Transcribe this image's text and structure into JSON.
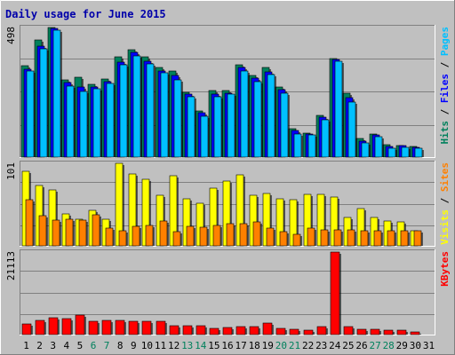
{
  "chart_data": {
    "type": "bar",
    "title": "Daily usage for June 2015",
    "days": [
      "1",
      "2",
      "3",
      "4",
      "5",
      "6",
      "7",
      "8",
      "9",
      "10",
      "11",
      "12",
      "13",
      "14",
      "15",
      "16",
      "17",
      "18",
      "19",
      "20",
      "21",
      "22",
      "23",
      "24",
      "25",
      "26",
      "27",
      "28",
      "29",
      "30",
      "31"
    ],
    "weekend_days": [
      "6",
      "7",
      "13",
      "14",
      "20",
      "21",
      "27",
      "28"
    ],
    "colors": {
      "hits": "#00805c",
      "files": "#0000ff",
      "pages": "#00c0ff",
      "visits": "#ffff00",
      "sites": "#ff8000",
      "kbytes": "#ff0000",
      "background": "#c0c0c0",
      "weekday_label": "#000000",
      "weekend_label": "#00805c"
    },
    "panels": [
      {
        "id": "hits_files_pages",
        "ymax_label": "498",
        "ylim": [
          0,
          498
        ],
        "legend": [
          {
            "text": "Hits",
            "color": "#00805c"
          },
          {
            "text": " / ",
            "color": "#000000"
          },
          {
            "text": "Files",
            "color": "#0000ff"
          },
          {
            "text": " / ",
            "color": "#000000"
          },
          {
            "text": "Pages",
            "color": "#00c0ff"
          }
        ],
        "series": [
          {
            "name": "Hits",
            "color": "#00805c",
            "values": [
              352,
              449,
              498,
              296,
              306,
              280,
              301,
              384,
              413,
              384,
              344,
              331,
              249,
              179,
              255,
              255,
              356,
              314,
              343,
              268,
              109,
              91,
              159,
              380,
              246,
              70,
              88,
              47,
              46,
              41,
              0
            ]
          },
          {
            "name": "Files",
            "color": "#0000ff",
            "values": [
              337,
              426,
              493,
              285,
              269,
              270,
              290,
              366,
              402,
              368,
              331,
              315,
              241,
              169,
              243,
              247,
              346,
              305,
              329,
              258,
              101,
              88,
              152,
              375,
              227,
              60,
              84,
              42,
              44,
              39,
              0
            ]
          },
          {
            "name": "Pages",
            "color": "#00c0ff",
            "values": [
              330,
              417,
              488,
              274,
              254,
              261,
              283,
              354,
              390,
              357,
              323,
              298,
              232,
              158,
              233,
              241,
              331,
              291,
              317,
              246,
              88,
              85,
              143,
              367,
              213,
              54,
              78,
              33,
              37,
              35,
              0
            ]
          }
        ]
      },
      {
        "id": "visits_sites",
        "ymax_label": "101",
        "ylim": [
          0,
          101
        ],
        "legend": [
          {
            "text": "Visits",
            "color": "#ffff00"
          },
          {
            "text": " / ",
            "color": "#000000"
          },
          {
            "text": "Sites",
            "color": "#ff8000"
          }
        ],
        "series": [
          {
            "name": "Visits",
            "color": "#ffff00",
            "values": [
              91,
              74,
              68,
              39,
              33,
              43,
              33,
              101,
              88,
              81,
              62,
              86,
              58,
              52,
              71,
              79,
              87,
              62,
              64,
              58,
              56,
              63,
              63,
              60,
              35,
              46,
              35,
              30,
              29,
              18,
              0
            ]
          },
          {
            "name": "Sites",
            "color": "#ff8000",
            "values": [
              56,
              37,
              32,
              33,
              32,
              38,
              22,
              19,
              24,
              25,
              30,
              17,
              24,
              23,
              25,
              27,
              27,
              29,
              22,
              17,
              14,
              22,
              20,
              20,
              20,
              19,
              19,
              19,
              19,
              18,
              0
            ]
          }
        ]
      },
      {
        "id": "kbytes",
        "ymax_label": "21113",
        "ylim": [
          0,
          21113
        ],
        "legend": [
          {
            "text": "KBytes",
            "color": "#ff0000"
          }
        ],
        "series": [
          {
            "name": "KBytes",
            "color": "#ff0000",
            "values": [
              2800,
              3550,
              4400,
              4050,
              4900,
              3400,
              3650,
              3650,
              3300,
              3320,
              3330,
              2300,
              2170,
              2300,
              1630,
              1830,
              2050,
              2150,
              2850,
              1620,
              1440,
              1240,
              2050,
              21113,
              1930,
              1460,
              1460,
              1220,
              1060,
              770,
              0
            ]
          }
        ]
      }
    ]
  }
}
